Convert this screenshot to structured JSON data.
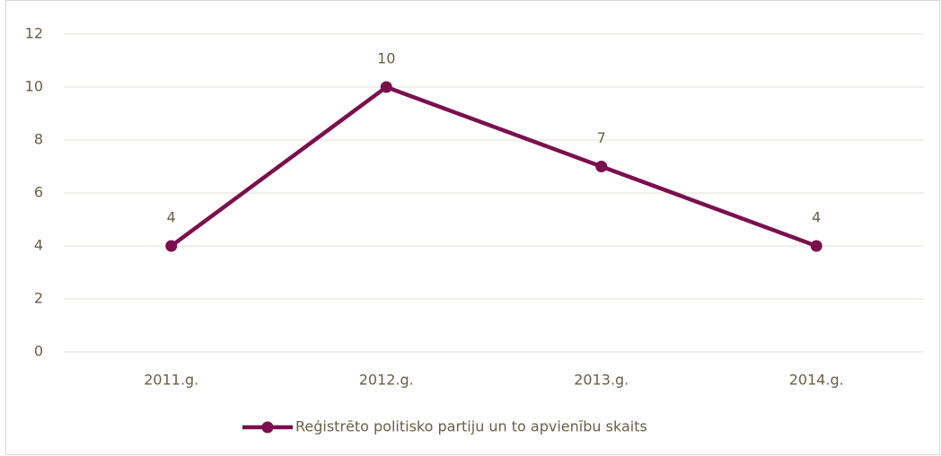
{
  "chart_data": {
    "type": "line",
    "categories": [
      "2011.g.",
      "2012.g.",
      "2013.g.",
      "2014.g."
    ],
    "series": [
      {
        "name": "Reģistrēto politisko partiju un to apvienību skaits",
        "color": "#7b0f4e",
        "values": [
          4,
          10,
          7,
          4
        ]
      }
    ],
    "ylim": [
      0,
      12
    ],
    "yticks": [
      0,
      2,
      4,
      6,
      8,
      10,
      12
    ],
    "grid": true,
    "legend": "bottom"
  }
}
